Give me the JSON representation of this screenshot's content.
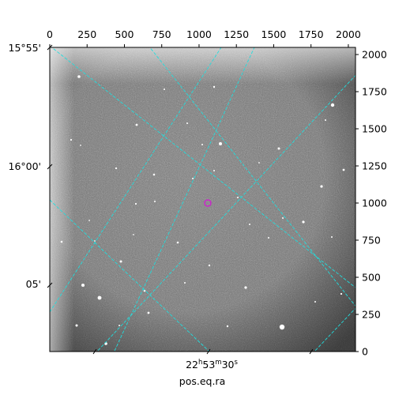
{
  "figure": {
    "xlabel": "pos.eq.ra",
    "marker_color": "#cc22cc",
    "grid_color": "#22dddd"
  },
  "pixel_axes": {
    "x_ticks": [
      "0",
      "250",
      "500",
      "750",
      "1000",
      "1250",
      "1500",
      "1750",
      "2000"
    ],
    "y_ticks": [
      "0",
      "250",
      "500",
      "750",
      "1000",
      "1250",
      "1500",
      "1750",
      "2000"
    ],
    "range": [
      0,
      2048
    ]
  },
  "world_axes": {
    "dec_ticks": [
      "15°55'",
      "16°00'",
      "05'"
    ],
    "ra_tick": {
      "h": "22",
      "m": "53",
      "s": "30"
    }
  }
}
